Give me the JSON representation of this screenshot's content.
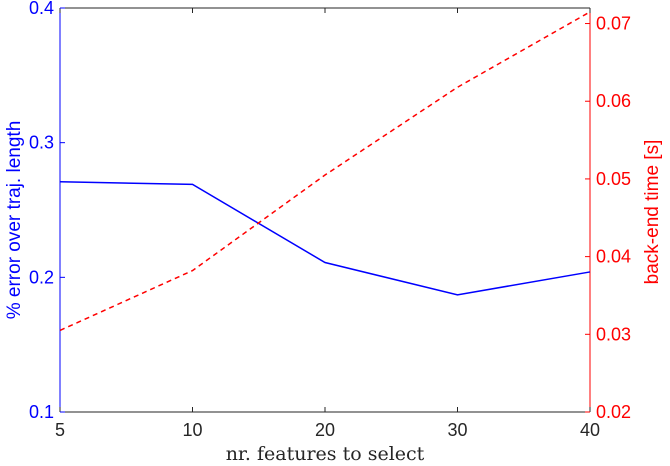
{
  "chart_data": {
    "type": "line",
    "title": "",
    "xlabel": "nr. features to select",
    "ylabel_left": "% error over traj. length",
    "ylabel_right": "back-end time [s]",
    "x": [
      5,
      10,
      20,
      30,
      40
    ],
    "x_tick_labels": [
      "5",
      "10",
      "20",
      "30",
      "40"
    ],
    "y_left_lim": [
      0.1,
      0.4
    ],
    "y_left_ticks": [
      "0.1",
      "0.2",
      "0.3",
      "0.4"
    ],
    "y_right_lim": [
      0.02,
      0.072
    ],
    "y_right_ticks": [
      "0.02",
      "0.03",
      "0.04",
      "0.05",
      "0.06",
      "0.07"
    ],
    "grid": false,
    "legend": "none",
    "series": [
      {
        "axis": "left",
        "color": "#0000ff",
        "line_style": "solid",
        "values": [
          0.271,
          0.269,
          0.211,
          0.187,
          0.204
        ]
      },
      {
        "axis": "right",
        "color": "#ff0000",
        "line_style": "dashed",
        "values": [
          0.0305,
          0.0382,
          0.0505,
          0.0618,
          0.0715
        ]
      }
    ],
    "colors": {
      "left_axis": "#0000ff",
      "right_axis": "#ff0000",
      "x_axis": "#262626"
    }
  }
}
